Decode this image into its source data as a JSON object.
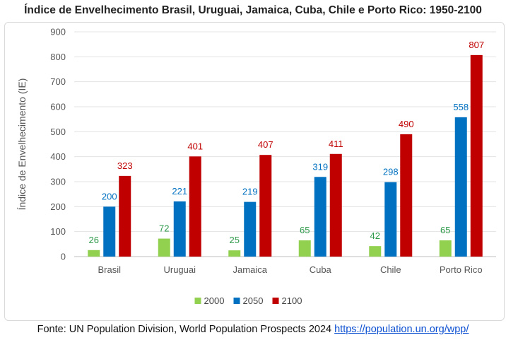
{
  "title": "Índice de Envelhecimento Brasil, Uruguai, Jamaica, Cuba, Chile e Porto Rico: 1950-2100",
  "source": {
    "text": "Fonte: UN Population Division, World Population Prospects 2024",
    "link": "https://population.un.org/wpp/"
  },
  "chart_data": {
    "type": "bar",
    "title": "",
    "ylabel": "Índice de Envelhecimento (IE)",
    "xlabel": "",
    "ylim": [
      0,
      900
    ],
    "yticks": [
      "0",
      "100",
      "200",
      "300",
      "400",
      "500",
      "600",
      "700",
      "800",
      "900"
    ],
    "grid": true,
    "legend_position": "bottom",
    "categories": [
      "Brasil",
      "Uruguai",
      "Jamaica",
      "Cuba",
      "Chile",
      "Porto Rico"
    ],
    "series": [
      {
        "name": "2000",
        "color": "#92d050",
        "label_color": "#2e9a4a",
        "values": [
          26,
          72,
          25,
          65,
          42,
          65
        ]
      },
      {
        "name": "2050",
        "color": "#0070c0",
        "label_color": "#0070c0",
        "values": [
          200,
          221,
          219,
          319,
          298,
          558
        ]
      },
      {
        "name": "2100",
        "color": "#c00000",
        "label_color": "#c00000",
        "values": [
          323,
          401,
          407,
          411,
          490,
          807
        ]
      }
    ]
  }
}
